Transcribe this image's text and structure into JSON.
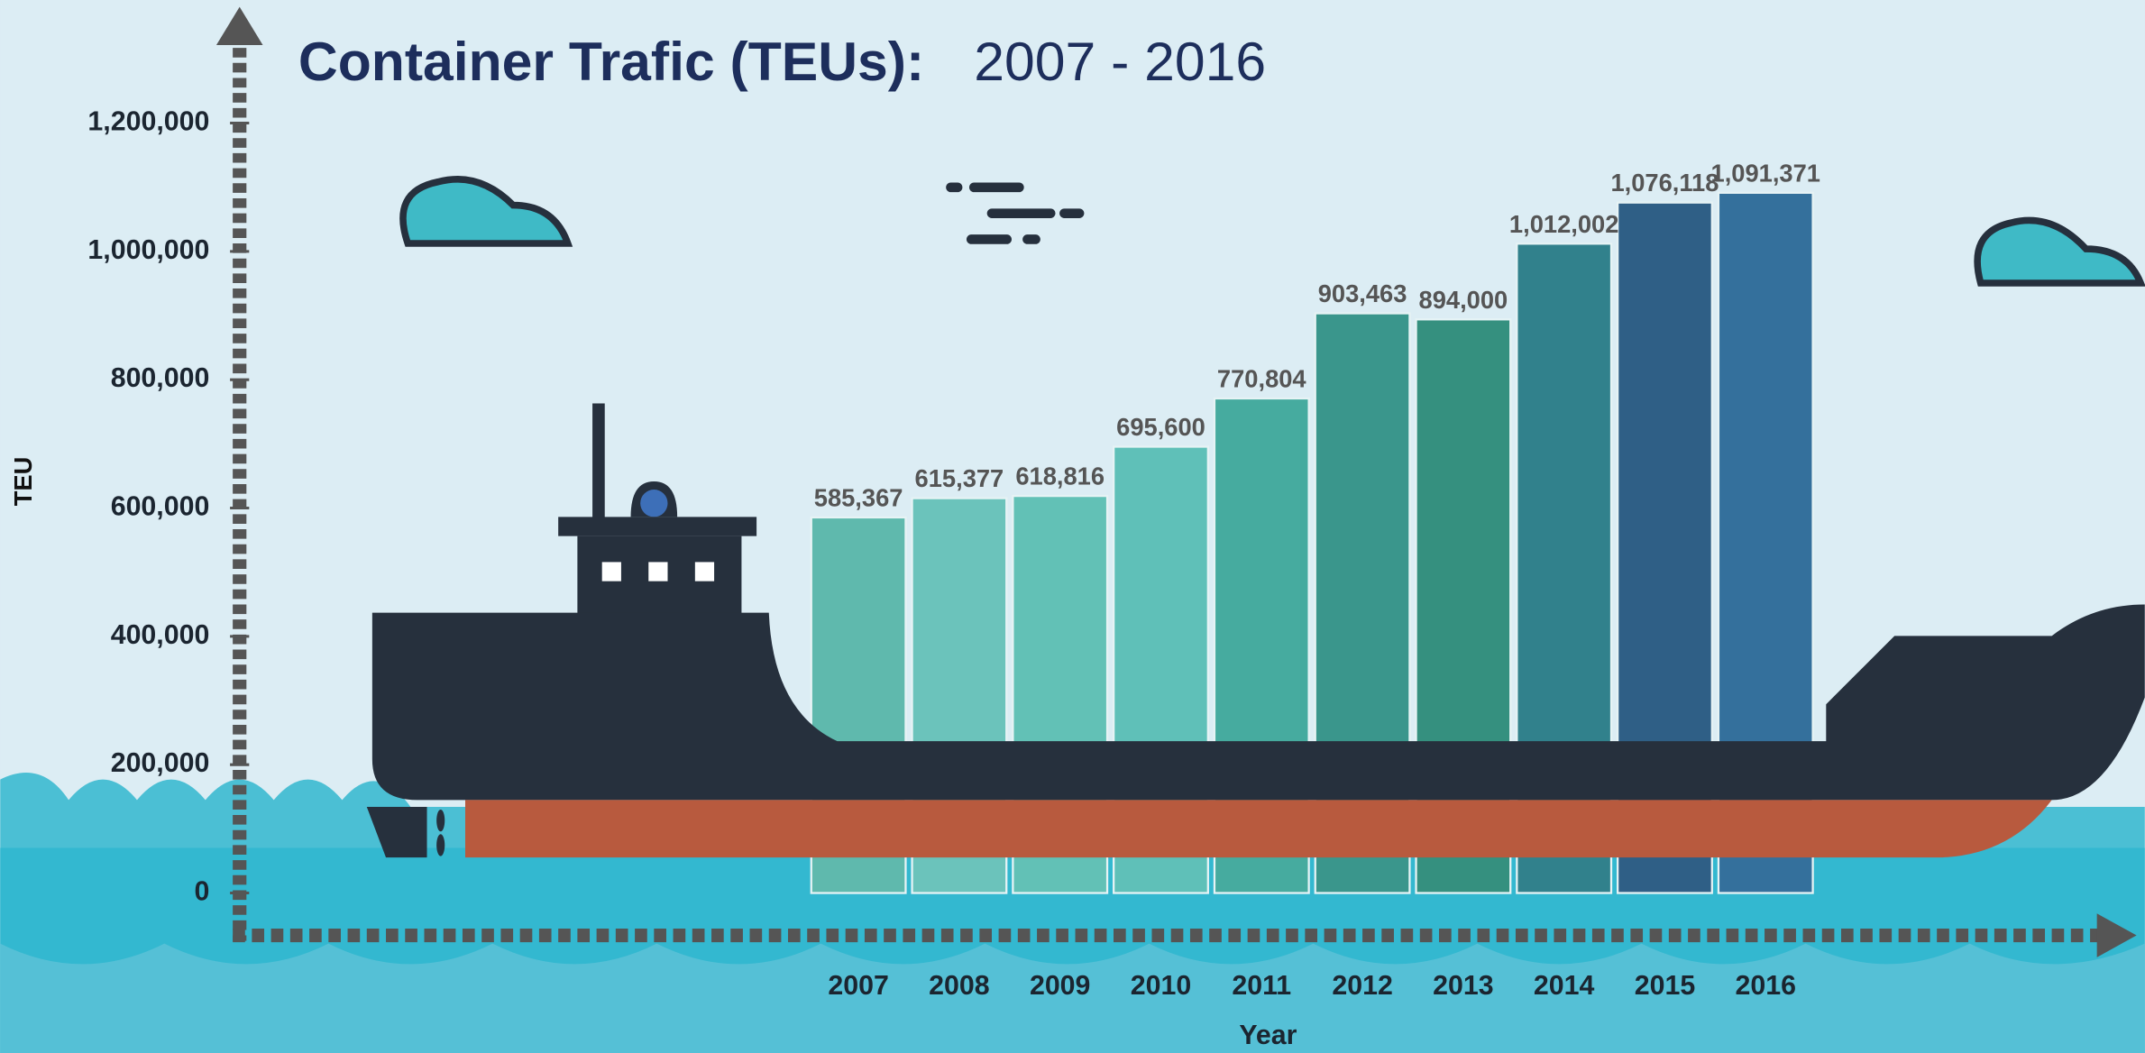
{
  "chart_data": {
    "type": "bar",
    "title": "Container Trafic (TEUs):",
    "subtitle": "2007 - 2016",
    "x_label": "Year",
    "y_label": "TEU",
    "categories": [
      "2007",
      "2008",
      "2009",
      "2010",
      "2011",
      "2012",
      "2013",
      "2014",
      "2015",
      "2016"
    ],
    "values": [
      585367,
      615377,
      618816,
      695600,
      770804,
      903463,
      894000,
      1012002,
      1076118,
      1091371
    ],
    "value_labels": [
      "585,367",
      "615,377",
      "618,816",
      "695,600",
      "770,804",
      "903,463",
      "894,000",
      "1,012,002",
      "1,076,118",
      "1,091,371"
    ],
    "colors": [
      "#5fb9ad",
      "#6bc3bb",
      "#62c1b6",
      "#5fc0b8",
      "#46ab9f",
      "#3a968c",
      "#35907f",
      "#31818c",
      "#2f5f86",
      "#34709c"
    ],
    "ylim": [
      0,
      1200000
    ],
    "yticks": [
      0,
      {
        "value": 200000,
        "label": "200,000"
      },
      {
        "value": 400000,
        "label": "400,000"
      },
      {
        "value": 600000,
        "label": "600,000"
      },
      {
        "value": 800000,
        "label": "800,000"
      },
      {
        "value": 1000000,
        "label": "1,000,000"
      },
      {
        "value": 1200000,
        "label": "1,200,000"
      }
    ],
    "grid": false
  }
}
